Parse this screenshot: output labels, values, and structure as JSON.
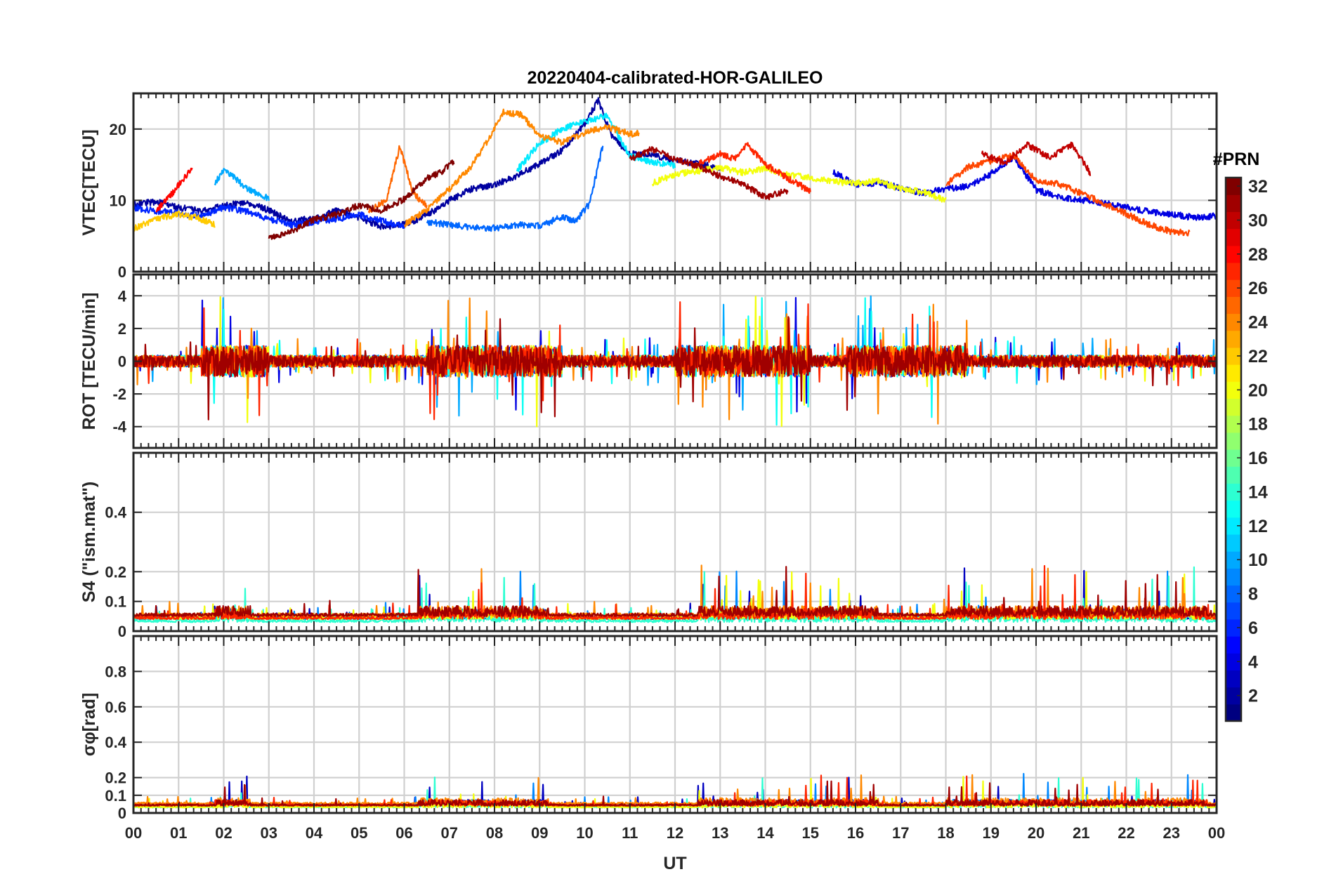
{
  "chart_data": {
    "type": "line",
    "title": "20220404-calibrated-HOR-GALILEO",
    "xlabel": "UT",
    "x_tick_labels": [
      "00",
      "01",
      "02",
      "03",
      "04",
      "05",
      "06",
      "07",
      "08",
      "09",
      "10",
      "11",
      "12",
      "13",
      "14",
      "15",
      "16",
      "17",
      "18",
      "19",
      "20",
      "21",
      "22",
      "23",
      "00"
    ],
    "xlim": [
      0,
      24
    ],
    "grid": true,
    "colorbar": {
      "label": "#PRN",
      "range": [
        1,
        32
      ],
      "ticks": [
        2,
        4,
        6,
        8,
        10,
        12,
        14,
        16,
        18,
        20,
        22,
        24,
        26,
        28,
        30,
        32
      ],
      "colormap": "jet",
      "colors": [
        "#00008f",
        "#0000ff",
        "#0080ff",
        "#00ffff",
        "#80ff80",
        "#ffff00",
        "#ff8000",
        "#ff0000",
        "#800000"
      ]
    },
    "panels": [
      {
        "ylabel": "VTEC[TECU]",
        "ylim": [
          0,
          25
        ],
        "yticks": [
          0,
          10,
          20
        ],
        "series": [
          {
            "prn": 2,
            "x": [
              0,
              0.5,
              1,
              1.5,
              2,
              2.5,
              3,
              3.5,
              4,
              4.5,
              5,
              5.5,
              6,
              6.5,
              7,
              7.5,
              8,
              8.5,
              9,
              9.5,
              10,
              10.3,
              10.6,
              11,
              11.5,
              12,
              12.5,
              13
            ],
            "y": [
              9.5,
              9.8,
              9,
              8.5,
              9.2,
              9.8,
              8.6,
              7,
              7.5,
              8.6,
              7.6,
              6.3,
              6.6,
              7.9,
              10,
              11.6,
              12.2,
              13.4,
              15.2,
              17,
              20.8,
              24,
              19,
              16.5,
              16.4,
              15.6,
              15.2,
              14.4
            ]
          },
          {
            "prn": 4,
            "x": [
              15.5,
              16,
              16.5,
              17,
              17.5,
              18,
              18.5,
              19,
              19.5,
              20,
              20.5,
              21,
              21.5,
              22,
              22.5,
              23,
              23.5,
              24
            ],
            "y": [
              14,
              12.2,
              12.5,
              11.7,
              11,
              11.6,
              12,
              13.7,
              16.1,
              11.5,
              10.5,
              10.1,
              9.6,
              9,
              8.4,
              8.1,
              7.6,
              7.8
            ]
          },
          {
            "prn": 6,
            "x": [
              0,
              0.5,
              1,
              1.5,
              2,
              2.5,
              3,
              3.5,
              4,
              4.5,
              5,
              5.5,
              6
            ],
            "y": [
              9,
              8.5,
              8.2,
              7.8,
              9,
              8.5,
              7.4,
              6.5,
              7,
              7.4,
              8,
              7.1,
              6.3
            ]
          },
          {
            "prn": 8,
            "x": [
              6.5,
              7,
              7.5,
              8,
              8.5,
              9,
              9.5,
              9.8,
              10.1,
              10.4
            ],
            "y": [
              7,
              6.6,
              6.2,
              6.1,
              6.6,
              6.4,
              7.7,
              7.1,
              9.5,
              17.6
            ]
          },
          {
            "prn": 10,
            "x": [
              1.8,
              2,
              2.2,
              2.5,
              3
            ],
            "y": [
              12.5,
              14.2,
              13.3,
              11.8,
              10.2
            ]
          },
          {
            "prn": 12,
            "x": [
              8.5,
              9,
              9.5,
              10,
              10.5,
              11,
              11.5,
              12
            ],
            "y": [
              14.2,
              18,
              20,
              21.1,
              21.8,
              16.2,
              15.4,
              14.9
            ]
          },
          {
            "prn": 20,
            "x": [
              11.5,
              12,
              12.5,
              13,
              13.5,
              14,
              14.5,
              15,
              15.5,
              16,
              16.5,
              17,
              17.5,
              18
            ],
            "y": [
              12.4,
              13.6,
              14.1,
              14.6,
              13.9,
              14.5,
              13.5,
              13.2,
              12.6,
              12.4,
              12.7,
              11.6,
              11.2,
              10
            ]
          },
          {
            "prn": 22,
            "x": [
              0,
              0.3,
              0.6,
              1,
              1.4,
              1.8
            ],
            "y": [
              6,
              6.8,
              7.6,
              8,
              7.6,
              6.6
            ]
          },
          {
            "prn": 24,
            "x": [
              6,
              6.5,
              7,
              7.5,
              7.8,
              8.2,
              8.6,
              9,
              9.5,
              10,
              10.5,
              11,
              11.2
            ],
            "y": [
              6.6,
              8.6,
              11.6,
              14.9,
              17.9,
              22.4,
              22,
              19,
              18.1,
              19.5,
              20.3,
              19.3,
              19.4
            ]
          },
          {
            "prn": 25,
            "x": [
              5.2,
              5.6,
              5.9,
              6.2,
              6.5
            ],
            "y": [
              8.5,
              10,
              17.5,
              11,
              9.2
            ]
          },
          {
            "prn": 26,
            "x": [
              18,
              18.5,
              19,
              19.5,
              20,
              20.5,
              21,
              21.5,
              22,
              22.5,
              23,
              23.4
            ],
            "y": [
              12.2,
              14.7,
              15.5,
              16.3,
              12.8,
              12.3,
              11,
              9.6,
              8.1,
              6.6,
              5.6,
              5.4
            ]
          },
          {
            "prn": 27,
            "x": [
              12.5,
              13,
              13.3,
              13.6,
              14,
              14.5,
              15
            ],
            "y": [
              15,
              16.6,
              15.8,
              17.8,
              15.1,
              13.1,
              11.3
            ]
          },
          {
            "prn": 28,
            "x": [
              0.5,
              0.8,
              1.1,
              1.3
            ],
            "y": [
              8.5,
              10.5,
              13,
              14.3
            ]
          },
          {
            "prn": 30,
            "x": [
              18.8,
              19.3,
              19.8,
              20.3,
              20.8,
              21.2
            ],
            "y": [
              16.5,
              15.2,
              17.8,
              16,
              17.9,
              13.8
            ]
          },
          {
            "prn": 31,
            "x": [
              11,
              11.5,
              12,
              12.5,
              13,
              13.5,
              14,
              14.5
            ],
            "y": [
              15.8,
              17.2,
              15.8,
              14.8,
              13.4,
              12.3,
              10.4,
              11.4
            ]
          },
          {
            "prn": 32,
            "x": [
              3,
              3.5,
              4,
              4.5,
              5,
              5.5,
              6,
              6.5,
              6.8,
              7.1
            ],
            "y": [
              4.6,
              5.6,
              7.3,
              8,
              9.3,
              8.6,
              10.2,
              13.1,
              13.9,
              15.5
            ]
          }
        ]
      },
      {
        "ylabel": "ROT [TECU/min]",
        "ylim": [
          -5.3,
          5.3
        ],
        "yticks": [
          -4,
          -2,
          0,
          2,
          4
        ],
        "series": [
          {
            "prn": 4,
            "x": [
              0,
              24
            ],
            "y": [
              0,
              0
            ]
          },
          {
            "prn": 10,
            "x": [
              0,
              24
            ],
            "y": [
              0,
              0
            ]
          },
          {
            "prn": 13,
            "x": [
              0,
              24
            ],
            "y": [
              0,
              0
            ]
          },
          {
            "prn": 20,
            "x": [
              0,
              24
            ],
            "y": [
              0,
              0
            ]
          },
          {
            "prn": 24,
            "x": [
              0,
              24
            ],
            "y": [
              0,
              0
            ]
          },
          {
            "prn": 27,
            "x": [
              0,
              24
            ],
            "y": [
              0,
              0
            ]
          },
          {
            "prn": 31,
            "x": [
              0,
              24
            ],
            "y": [
              0,
              0
            ]
          }
        ]
      },
      {
        "ylabel": "S4 (\"ism.mat\")",
        "ylim": [
          0,
          0.6
        ],
        "yticks": [
          0,
          0.1,
          0.2,
          0.4
        ],
        "ytick_labels": [
          "0",
          "0.1",
          "0.2",
          "0.4"
        ],
        "series": [
          {
            "prn": 3,
            "x": [
              0,
              24
            ],
            "y": [
              0.04,
              0.04
            ]
          },
          {
            "prn": 9,
            "x": [
              0,
              24
            ],
            "y": [
              0.04,
              0.04
            ]
          },
          {
            "prn": 14,
            "x": [
              0,
              24
            ],
            "y": [
              0.03,
              0.03
            ]
          },
          {
            "prn": 20,
            "x": [
              0,
              24
            ],
            "y": [
              0.04,
              0.04
            ]
          },
          {
            "prn": 24,
            "x": [
              0,
              24
            ],
            "y": [
              0.05,
              0.05
            ]
          },
          {
            "prn": 27,
            "x": [
              0,
              24
            ],
            "y": [
              0.04,
              0.04
            ]
          },
          {
            "prn": 31,
            "x": [
              0,
              24
            ],
            "y": [
              0.05,
              0.05
            ]
          }
        ]
      },
      {
        "ylabel": "σφ[rad]",
        "ylim": [
          0,
          1
        ],
        "yticks": [
          0,
          0.1,
          0.2,
          0.4,
          0.6,
          0.8
        ],
        "ytick_labels": [
          "0",
          "0.1",
          "0.2",
          "0.4",
          "0.6",
          "0.8"
        ],
        "series": [
          {
            "prn": 3,
            "x": [
              0,
              24
            ],
            "y": [
              0.04,
              0.04
            ]
          },
          {
            "prn": 9,
            "x": [
              0,
              24
            ],
            "y": [
              0.04,
              0.04
            ]
          },
          {
            "prn": 14,
            "x": [
              0,
              24
            ],
            "y": [
              0.03,
              0.03
            ]
          },
          {
            "prn": 20,
            "x": [
              0,
              24
            ],
            "y": [
              0.03,
              0.03
            ]
          },
          {
            "prn": 24,
            "x": [
              0,
              24
            ],
            "y": [
              0.05,
              0.05
            ]
          },
          {
            "prn": 27,
            "x": [
              0,
              24
            ],
            "y": [
              0.04,
              0.04
            ]
          },
          {
            "prn": 31,
            "x": [
              0,
              24
            ],
            "y": [
              0.04,
              0.04
            ]
          }
        ]
      }
    ]
  }
}
